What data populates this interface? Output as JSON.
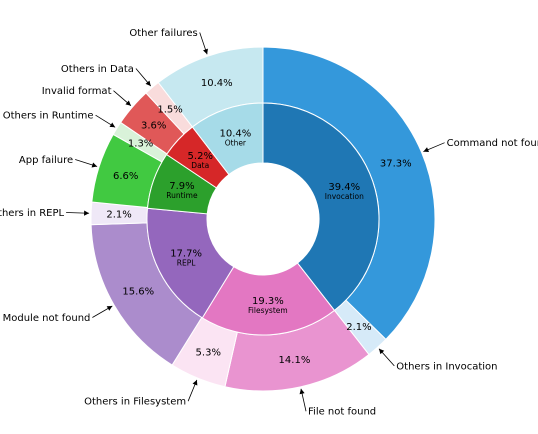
{
  "chart_data": {
    "type": "nested-pie",
    "title": "",
    "inner": [
      {
        "label": "Invocation",
        "value": 39.4,
        "pct_label": "39.4%",
        "color": "#1f77b4"
      },
      {
        "label": "Filesystem",
        "value": 19.3,
        "pct_label": "19.3%",
        "color": "#e377c2"
      },
      {
        "label": "REPL",
        "value": 17.7,
        "pct_label": "17.7%",
        "color": "#9467bd"
      },
      {
        "label": "Runtime",
        "value": 7.9,
        "pct_label": "7.9%",
        "color": "#2ca02c"
      },
      {
        "label": "Data",
        "value": 5.2,
        "pct_label": "5.2%",
        "color": "#d62728"
      },
      {
        "label": "Other",
        "value": 10.4,
        "pct_label": "10.4%",
        "color": "#a6dbe8"
      }
    ],
    "outer": [
      {
        "label": "Command not found",
        "value": 37.3,
        "pct_label": "37.3%",
        "color": "#3498db"
      },
      {
        "label": "Others in Invocation",
        "value": 2.1,
        "pct_label": "2.1%",
        "color": "#d6eaf8"
      },
      {
        "label": "File not found",
        "value": 14.1,
        "pct_label": "14.1%",
        "color": "#e994d0"
      },
      {
        "label": "Others in Filesystem",
        "value": 5.3,
        "pct_label": "5.3%",
        "color": "#fbe4f3"
      },
      {
        "label": "Module not found",
        "value": 15.6,
        "pct_label": "15.6%",
        "color": "#ab8ccc"
      },
      {
        "label": "Others in REPL",
        "value": 2.1,
        "pct_label": "2.1%",
        "color": "#efe8f7"
      },
      {
        "label": "App failure",
        "value": 6.6,
        "pct_label": "6.6%",
        "color": "#41c941"
      },
      {
        "label": "Others in Runtime",
        "value": 1.3,
        "pct_label": "1.3%",
        "color": "#d9f2d9"
      },
      {
        "label": "Invalid format",
        "value": 3.6,
        "pct_label": "3.6%",
        "color": "#e05858"
      },
      {
        "label": "Others in Data",
        "value": 1.5,
        "pct_label": "1.5%",
        "color": "#f9dcdc"
      },
      {
        "label": "Other failures",
        "value": 10.4,
        "pct_label": "10.4%",
        "color": "#c6e8f0"
      }
    ]
  }
}
